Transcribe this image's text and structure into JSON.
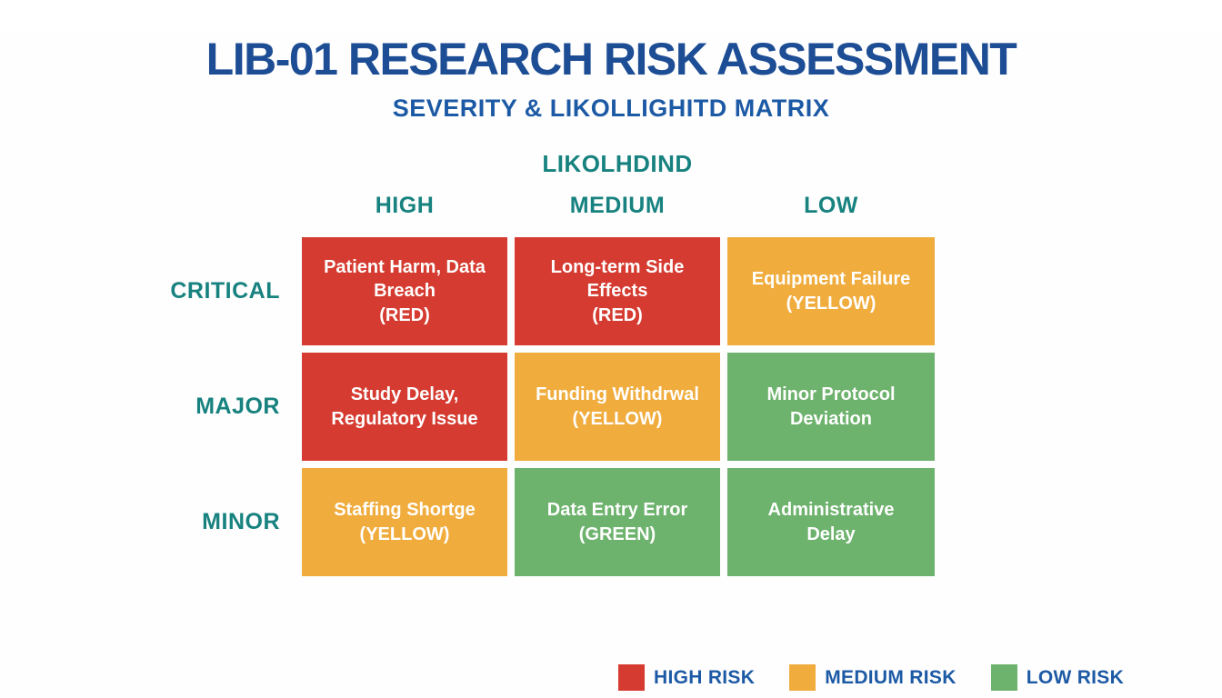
{
  "colors": {
    "high": "#d53b30",
    "medium": "#f0ac3d",
    "low": "#6db26d",
    "teal": "#17827f",
    "title_blue": "#1d4d94",
    "legend_blue": "#1d5aa5"
  },
  "header": {
    "title": "LIB-01 RESEARCH RISK ASSESSMENT",
    "subtitle": "SEVERITY & LIKOLLIGHITD MATRIX"
  },
  "matrix": {
    "axis_label": "LIKOLHDIND",
    "columns": [
      "HIGH",
      "MEDIUM",
      "LOW"
    ],
    "rows": [
      {
        "label": "CRITICAL",
        "cells": [
          {
            "text": "Patient Harm, Data Breach\n(RED)",
            "level": "high"
          },
          {
            "text": "Long-term Side Effects\n(RED)",
            "level": "high"
          },
          {
            "text": "Equipment Failure\n(YELLOW)",
            "level": "medium"
          }
        ]
      },
      {
        "label": "MAJOR",
        "cells": [
          {
            "text": "Study Delay,\nRegulatory Issue",
            "level": "high"
          },
          {
            "text": "Funding Withdrwal\n(YELLOW)",
            "level": "medium"
          },
          {
            "text": "Minor Protocol\nDeviation",
            "level": "low"
          }
        ]
      },
      {
        "label": "MINOR",
        "cells": [
          {
            "text": "Staffing Shortge\n(YELLOW)",
            "level": "medium"
          },
          {
            "text": "Data Entry Error\n(GREEN)",
            "level": "low"
          },
          {
            "text": "Administrative\nDelay",
            "level": "low"
          }
        ]
      }
    ]
  },
  "legend": {
    "items": [
      {
        "label": "HIGH RISK",
        "level": "high"
      },
      {
        "label": "MEDIUM RISK",
        "level": "medium"
      },
      {
        "label": "LOW RISK",
        "level": "low"
      }
    ]
  }
}
